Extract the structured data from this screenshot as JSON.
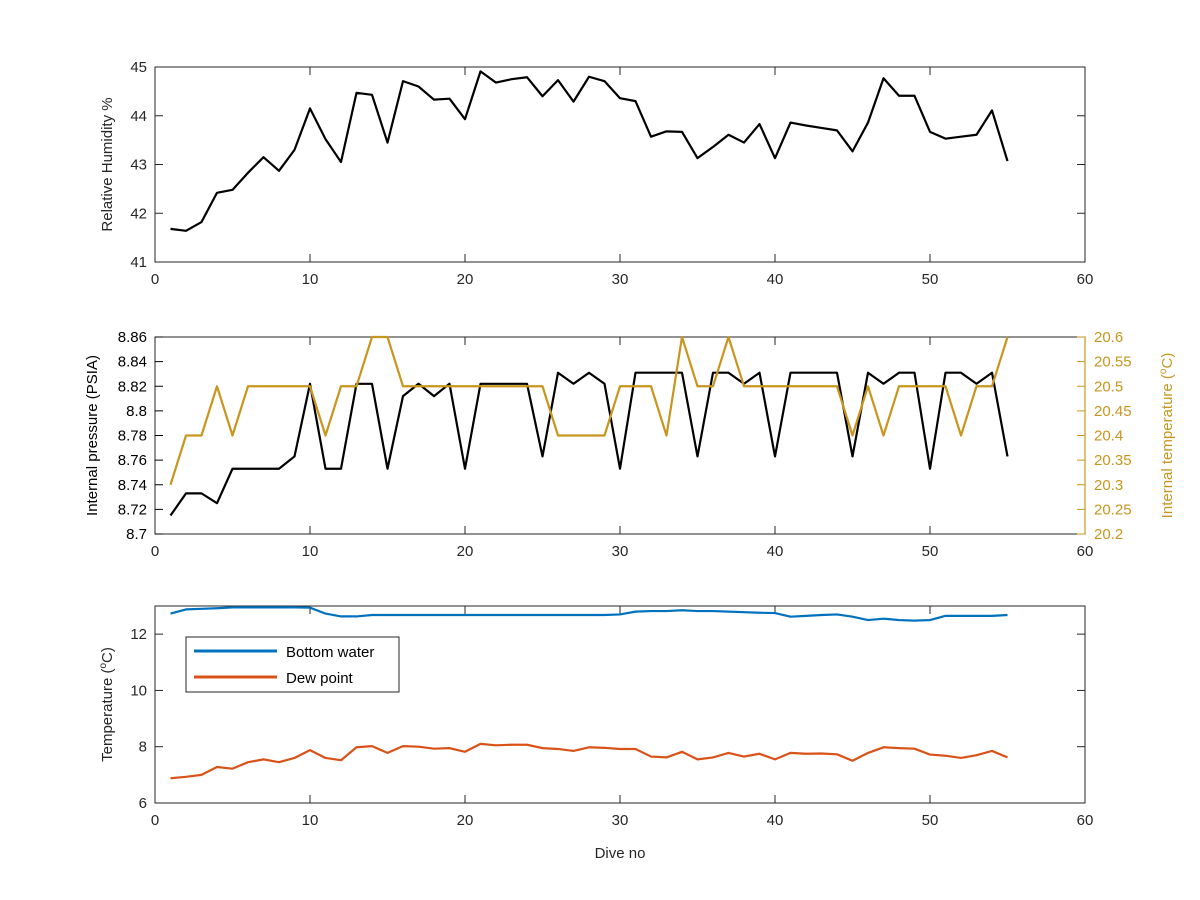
{
  "chart_data": [
    {
      "type": "line",
      "xlabel": "",
      "ylabel": "Relative Humidity %",
      "xlim": [
        0,
        60
      ],
      "ylim": [
        41,
        45
      ],
      "xticks": [
        0,
        10,
        20,
        30,
        40,
        50,
        60
      ],
      "yticks": [
        41,
        42,
        43,
        44,
        45
      ],
      "grid": false,
      "series": [
        {
          "color": "#000000",
          "x": [
            1,
            2,
            3,
            4,
            5,
            6,
            7,
            8,
            9,
            10,
            11,
            12,
            13,
            14,
            15,
            16,
            17,
            18,
            19,
            20,
            21,
            22,
            23,
            24,
            25,
            26,
            27,
            28,
            29,
            30,
            31,
            32,
            33,
            34,
            35,
            36,
            37,
            38,
            39,
            40,
            41,
            42,
            43,
            44,
            45,
            46,
            47,
            48,
            49,
            50,
            51,
            52,
            53,
            54,
            55
          ],
          "y": [
            41.68,
            41.64,
            41.82,
            42.42,
            42.48,
            42.83,
            43.15,
            42.87,
            43.3,
            44.15,
            43.52,
            43.05,
            44.47,
            44.43,
            43.45,
            44.71,
            44.6,
            44.33,
            44.35,
            43.93,
            44.91,
            44.68,
            44.75,
            44.79,
            44.4,
            44.73,
            44.29,
            44.8,
            44.71,
            44.36,
            44.3,
            43.57,
            43.68,
            43.67,
            43.13,
            43.36,
            43.61,
            43.45,
            43.83,
            43.13,
            43.86,
            43.8,
            43.75,
            43.7,
            43.27,
            43.86,
            44.77,
            44.41,
            44.41,
            43.67,
            43.53,
            43.57,
            43.61,
            44.11,
            43.07
          ]
        }
      ]
    },
    {
      "type": "line",
      "xlabel": "",
      "ylabel": "Internal pressure (PSIA)",
      "y2label": "Internal temperature (",
      "y2label_unit": "C)",
      "y2label_degree": "o",
      "xlim": [
        0,
        60
      ],
      "ylim": [
        8.7,
        8.86
      ],
      "y2lim": [
        20.2,
        20.6
      ],
      "xticks": [
        0,
        10,
        20,
        30,
        40,
        50,
        60
      ],
      "yticks": [
        "8.7",
        "8.72",
        "8.74",
        "8.76",
        "8.78",
        "8.8",
        "8.82",
        "8.84",
        "8.86"
      ],
      "y2ticks": [
        "20.2",
        "20.25",
        "20.3",
        "20.35",
        "20.4",
        "20.45",
        "20.5",
        "20.55",
        "20.6"
      ],
      "grid": false,
      "series": [
        {
          "axis": "left",
          "color": "#000000",
          "x": [
            1,
            2,
            3,
            4,
            5,
            6,
            7,
            8,
            9,
            10,
            11,
            12,
            13,
            14,
            15,
            16,
            17,
            18,
            19,
            20,
            21,
            22,
            23,
            24,
            25,
            26,
            27,
            28,
            29,
            30,
            31,
            32,
            33,
            34,
            35,
            36,
            37,
            38,
            39,
            40,
            41,
            42,
            43,
            44,
            45,
            46,
            47,
            48,
            49,
            50,
            51,
            52,
            53,
            54,
            55
          ],
          "y": [
            8.715,
            8.733,
            8.733,
            8.725,
            8.753,
            8.753,
            8.753,
            8.753,
            8.763,
            8.822,
            8.753,
            8.753,
            8.822,
            8.822,
            8.753,
            8.812,
            8.822,
            8.812,
            8.822,
            8.753,
            8.822,
            8.822,
            8.822,
            8.822,
            8.763,
            8.831,
            8.822,
            8.831,
            8.822,
            8.753,
            8.831,
            8.831,
            8.831,
            8.831,
            8.763,
            8.831,
            8.831,
            8.822,
            8.831,
            8.763,
            8.831,
            8.831,
            8.831,
            8.831,
            8.763,
            8.831,
            8.822,
            8.831,
            8.831,
            8.753,
            8.831,
            8.831,
            8.822,
            8.831,
            8.763
          ]
        },
        {
          "axis": "right",
          "color": "#C8961E",
          "x": [
            1,
            2,
            3,
            4,
            5,
            6,
            7,
            8,
            9,
            10,
            11,
            12,
            13,
            14,
            15,
            16,
            17,
            18,
            19,
            20,
            21,
            22,
            23,
            24,
            25,
            26,
            27,
            28,
            29,
            30,
            31,
            32,
            33,
            34,
            35,
            36,
            37,
            38,
            39,
            40,
            41,
            42,
            43,
            44,
            45,
            46,
            47,
            48,
            49,
            50,
            51,
            52,
            53,
            54,
            55
          ],
          "y": [
            20.3,
            20.4,
            20.4,
            20.5,
            20.4,
            20.5,
            20.5,
            20.5,
            20.5,
            20.5,
            20.4,
            20.5,
            20.5,
            20.6,
            20.6,
            20.5,
            20.5,
            20.5,
            20.5,
            20.5,
            20.5,
            20.5,
            20.5,
            20.5,
            20.5,
            20.4,
            20.4,
            20.4,
            20.4,
            20.5,
            20.5,
            20.5,
            20.4,
            20.6,
            20.5,
            20.5,
            20.6,
            20.5,
            20.5,
            20.5,
            20.5,
            20.5,
            20.5,
            20.5,
            20.4,
            20.5,
            20.4,
            20.5,
            20.5,
            20.5,
            20.5,
            20.4,
            20.5,
            20.5,
            20.6
          ]
        }
      ]
    },
    {
      "type": "line",
      "xlabel": "Dive no",
      "ylabel": "Temperature (",
      "ylabel_degree": "o",
      "ylabel_unit": "C)",
      "xlim": [
        0,
        60
      ],
      "ylim": [
        6,
        13
      ],
      "xticks": [
        0,
        10,
        20,
        30,
        40,
        50,
        60
      ],
      "yticks": [
        6,
        8,
        10,
        12
      ],
      "grid": false,
      "legend_position": "top-left",
      "series": [
        {
          "name": "Bottom water",
          "color": "#0072BD",
          "x": [
            1,
            2,
            3,
            4,
            5,
            6,
            7,
            8,
            9,
            10,
            11,
            12,
            13,
            14,
            15,
            16,
            17,
            18,
            19,
            20,
            21,
            22,
            23,
            24,
            25,
            26,
            27,
            28,
            29,
            30,
            31,
            32,
            33,
            34,
            35,
            36,
            37,
            38,
            39,
            40,
            41,
            42,
            43,
            44,
            45,
            46,
            47,
            48,
            49,
            50,
            51,
            52,
            53,
            54,
            55
          ],
          "y": [
            12.73,
            12.88,
            12.9,
            12.92,
            12.95,
            12.95,
            12.95,
            12.95,
            12.95,
            12.94,
            12.73,
            12.63,
            12.63,
            12.68,
            12.68,
            12.68,
            12.68,
            12.68,
            12.68,
            12.68,
            12.68,
            12.68,
            12.68,
            12.68,
            12.68,
            12.68,
            12.68,
            12.68,
            12.68,
            12.7,
            12.8,
            12.82,
            12.82,
            12.85,
            12.82,
            12.82,
            12.8,
            12.78,
            12.76,
            12.75,
            12.62,
            12.65,
            12.68,
            12.7,
            12.62,
            12.5,
            12.55,
            12.5,
            12.48,
            12.5,
            12.65,
            12.65,
            12.65,
            12.65,
            12.68
          ]
        },
        {
          "name": "Dew point",
          "color": "#D95319",
          "x": [
            1,
            2,
            3,
            4,
            5,
            6,
            7,
            8,
            9,
            10,
            11,
            12,
            13,
            14,
            15,
            16,
            17,
            18,
            19,
            20,
            21,
            22,
            23,
            24,
            25,
            26,
            27,
            28,
            29,
            30,
            31,
            32,
            33,
            34,
            35,
            36,
            37,
            38,
            39,
            40,
            41,
            42,
            43,
            44,
            45,
            46,
            47,
            48,
            49,
            50,
            51,
            52,
            53,
            54,
            55
          ],
          "y": [
            6.88,
            6.93,
            7.0,
            7.28,
            7.22,
            7.45,
            7.55,
            7.45,
            7.6,
            7.88,
            7.6,
            7.52,
            7.98,
            8.02,
            7.78,
            8.02,
            8.0,
            7.93,
            7.95,
            7.82,
            8.1,
            8.05,
            8.07,
            8.07,
            7.95,
            7.92,
            7.85,
            7.98,
            7.96,
            7.92,
            7.92,
            7.65,
            7.62,
            7.82,
            7.55,
            7.62,
            7.78,
            7.65,
            7.75,
            7.55,
            7.78,
            7.75,
            7.76,
            7.73,
            7.5,
            7.78,
            7.98,
            7.95,
            7.93,
            7.72,
            7.68,
            7.6,
            7.7,
            7.85,
            7.62
          ]
        }
      ]
    }
  ]
}
